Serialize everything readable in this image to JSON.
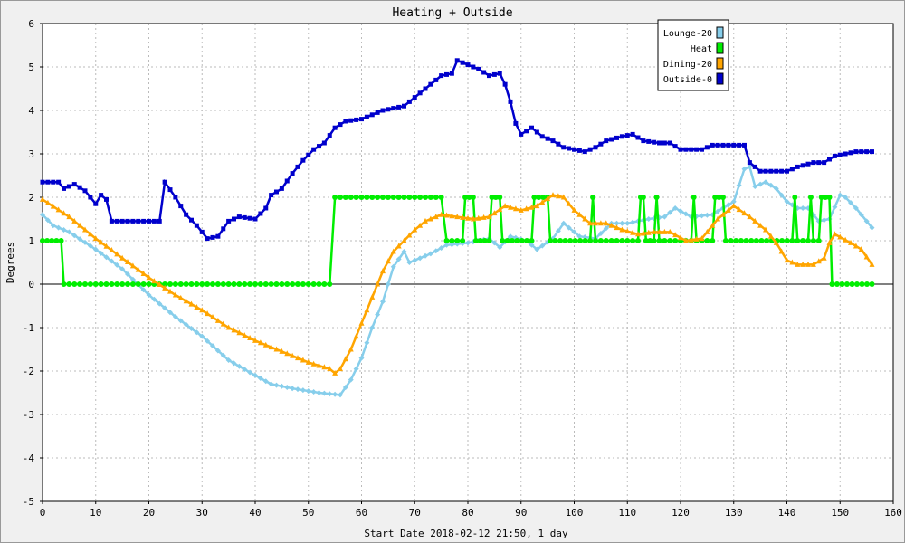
{
  "chart_data": {
    "type": "line",
    "title": "Heating + Outside",
    "xlabel": "Start Date 2018-02-12 21:50, 1 day",
    "ylabel": "Degrees",
    "xlim": [
      0,
      160
    ],
    "ylim": [
      -5,
      6
    ],
    "x_ticks": [
      0,
      10,
      20,
      30,
      40,
      50,
      60,
      70,
      80,
      90,
      100,
      110,
      120,
      130,
      140,
      150,
      160
    ],
    "y_ticks": [
      -5,
      -4,
      -3,
      -2,
      -1,
      0,
      1,
      2,
      3,
      4,
      5,
      6
    ],
    "grid": true,
    "legend_position": "top-right",
    "series": [
      {
        "name": "Lounge-20",
        "color": "#87ceeb",
        "marker": "diamond",
        "points": [
          [
            0,
            1.6
          ],
          [
            2,
            1.35
          ],
          [
            5,
            1.2
          ],
          [
            10,
            0.8
          ],
          [
            15,
            0.35
          ],
          [
            20,
            -0.25
          ],
          [
            25,
            -0.75
          ],
          [
            30,
            -1.2
          ],
          [
            35,
            -1.75
          ],
          [
            40,
            -2.1
          ],
          [
            43,
            -2.3
          ],
          [
            47,
            -2.4
          ],
          [
            52,
            -2.5
          ],
          [
            56,
            -2.55
          ],
          [
            58,
            -2.2
          ],
          [
            60,
            -1.7
          ],
          [
            62,
            -1.0
          ],
          [
            64,
            -0.4
          ],
          [
            66,
            0.4
          ],
          [
            68,
            0.75
          ],
          [
            69,
            0.5
          ],
          [
            71,
            0.6
          ],
          [
            73,
            0.7
          ],
          [
            76,
            0.9
          ],
          [
            80,
            0.95
          ],
          [
            84,
            1.05
          ],
          [
            86,
            0.85
          ],
          [
            88,
            1.1
          ],
          [
            91,
            1.0
          ],
          [
            93,
            0.8
          ],
          [
            96,
            1.05
          ],
          [
            98,
            1.4
          ],
          [
            101,
            1.1
          ],
          [
            104,
            1.05
          ],
          [
            107,
            1.4
          ],
          [
            110,
            1.4
          ],
          [
            114,
            1.5
          ],
          [
            117,
            1.55
          ],
          [
            119,
            1.75
          ],
          [
            122,
            1.55
          ],
          [
            126,
            1.6
          ],
          [
            130,
            1.9
          ],
          [
            132,
            2.65
          ],
          [
            133,
            2.7
          ],
          [
            134,
            2.25
          ],
          [
            136,
            2.35
          ],
          [
            138,
            2.2
          ],
          [
            140,
            1.9
          ],
          [
            142,
            1.75
          ],
          [
            144,
            1.75
          ],
          [
            146,
            1.45
          ],
          [
            148,
            1.5
          ],
          [
            150,
            2.05
          ],
          [
            151,
            2.0
          ],
          [
            153,
            1.75
          ],
          [
            156,
            1.3
          ]
        ]
      },
      {
        "name": "Heat",
        "color": "#00ee00",
        "marker": "circle",
        "points": [
          [
            0,
            1
          ],
          [
            3.5,
            1
          ],
          [
            4,
            0
          ],
          [
            54,
            0
          ],
          [
            55,
            2
          ],
          [
            75,
            2
          ],
          [
            76,
            1
          ],
          [
            79,
            1
          ],
          [
            79.5,
            2
          ],
          [
            81,
            2
          ],
          [
            81.5,
            1
          ],
          [
            84,
            1
          ],
          [
            84.5,
            2
          ],
          [
            86,
            2
          ],
          [
            86.5,
            1
          ],
          [
            92,
            1
          ],
          [
            92.5,
            2
          ],
          [
            95,
            2
          ],
          [
            95.5,
            1
          ],
          [
            103,
            1
          ],
          [
            103.5,
            2
          ],
          [
            104,
            1
          ],
          [
            112,
            1
          ],
          [
            112.5,
            2
          ],
          [
            113,
            2
          ],
          [
            113.5,
            1
          ],
          [
            115,
            1
          ],
          [
            115.5,
            2
          ],
          [
            116,
            1
          ],
          [
            122,
            1
          ],
          [
            122.5,
            2
          ],
          [
            123,
            1
          ],
          [
            126,
            1
          ],
          [
            126.5,
            2
          ],
          [
            128,
            2
          ],
          [
            128.5,
            1
          ],
          [
            141,
            1
          ],
          [
            141.5,
            2
          ],
          [
            142,
            1
          ],
          [
            144,
            1
          ],
          [
            144.5,
            2
          ],
          [
            145,
            1
          ],
          [
            146,
            1
          ],
          [
            146.5,
            2
          ],
          [
            148,
            2
          ],
          [
            148.5,
            0
          ],
          [
            156,
            0
          ]
        ]
      },
      {
        "name": "Dining-20",
        "color": "#ffa500",
        "marker": "triangle",
        "points": [
          [
            0,
            1.95
          ],
          [
            5,
            1.55
          ],
          [
            10,
            1.05
          ],
          [
            15,
            0.6
          ],
          [
            20,
            0.15
          ],
          [
            25,
            -0.25
          ],
          [
            30,
            -0.6
          ],
          [
            35,
            -1.0
          ],
          [
            40,
            -1.3
          ],
          [
            45,
            -1.55
          ],
          [
            50,
            -1.8
          ],
          [
            54,
            -1.95
          ],
          [
            55,
            -2.05
          ],
          [
            56,
            -1.95
          ],
          [
            58,
            -1.5
          ],
          [
            60,
            -0.9
          ],
          [
            62,
            -0.3
          ],
          [
            64,
            0.3
          ],
          [
            66,
            0.75
          ],
          [
            68,
            1.0
          ],
          [
            70,
            1.25
          ],
          [
            72,
            1.45
          ],
          [
            75,
            1.6
          ],
          [
            78,
            1.55
          ],
          [
            81,
            1.5
          ],
          [
            84,
            1.55
          ],
          [
            87,
            1.8
          ],
          [
            90,
            1.7
          ],
          [
            93,
            1.8
          ],
          [
            96,
            2.05
          ],
          [
            98,
            2.0
          ],
          [
            100,
            1.7
          ],
          [
            103,
            1.4
          ],
          [
            106,
            1.4
          ],
          [
            109,
            1.25
          ],
          [
            112,
            1.15
          ],
          [
            115,
            1.2
          ],
          [
            118,
            1.2
          ],
          [
            121,
            1.0
          ],
          [
            124,
            1.05
          ],
          [
            127,
            1.5
          ],
          [
            130,
            1.8
          ],
          [
            133,
            1.55
          ],
          [
            136,
            1.25
          ],
          [
            138,
            0.95
          ],
          [
            140,
            0.55
          ],
          [
            142,
            0.45
          ],
          [
            145,
            0.45
          ],
          [
            147,
            0.6
          ],
          [
            148,
            0.95
          ],
          [
            149,
            1.15
          ],
          [
            152,
            0.95
          ],
          [
            154,
            0.8
          ],
          [
            156,
            0.45
          ]
        ]
      },
      {
        "name": "Outside-0",
        "color": "#0000cc",
        "marker": "square",
        "points": [
          [
            0,
            2.35
          ],
          [
            3,
            2.35
          ],
          [
            4,
            2.2
          ],
          [
            6,
            2.3
          ],
          [
            8,
            2.15
          ],
          [
            10,
            1.85
          ],
          [
            11,
            2.05
          ],
          [
            12,
            1.95
          ],
          [
            13,
            1.45
          ],
          [
            16,
            1.45
          ],
          [
            20,
            1.45
          ],
          [
            22,
            1.45
          ],
          [
            23,
            2.35
          ],
          [
            25,
            2.0
          ],
          [
            27,
            1.6
          ],
          [
            29,
            1.35
          ],
          [
            31,
            1.05
          ],
          [
            33,
            1.1
          ],
          [
            35,
            1.45
          ],
          [
            37,
            1.55
          ],
          [
            40,
            1.5
          ],
          [
            42,
            1.75
          ],
          [
            43,
            2.05
          ],
          [
            45,
            2.2
          ],
          [
            47,
            2.55
          ],
          [
            49,
            2.85
          ],
          [
            51,
            3.1
          ],
          [
            53,
            3.25
          ],
          [
            55,
            3.6
          ],
          [
            57,
            3.75
          ],
          [
            60,
            3.8
          ],
          [
            62,
            3.9
          ],
          [
            64,
            4.0
          ],
          [
            66,
            4.05
          ],
          [
            68,
            4.1
          ],
          [
            70,
            4.3
          ],
          [
            72,
            4.5
          ],
          [
            75,
            4.8
          ],
          [
            77,
            4.85
          ],
          [
            78,
            5.15
          ],
          [
            80,
            5.05
          ],
          [
            82,
            4.95
          ],
          [
            84,
            4.8
          ],
          [
            86,
            4.85
          ],
          [
            87,
            4.6
          ],
          [
            88,
            4.2
          ],
          [
            89,
            3.7
          ],
          [
            90,
            3.45
          ],
          [
            92,
            3.6
          ],
          [
            94,
            3.4
          ],
          [
            96,
            3.3
          ],
          [
            98,
            3.15
          ],
          [
            100,
            3.1
          ],
          [
            102,
            3.05
          ],
          [
            104,
            3.15
          ],
          [
            106,
            3.3
          ],
          [
            109,
            3.4
          ],
          [
            111,
            3.45
          ],
          [
            113,
            3.3
          ],
          [
            116,
            3.25
          ],
          [
            118,
            3.25
          ],
          [
            120,
            3.1
          ],
          [
            124,
            3.1
          ],
          [
            126,
            3.2
          ],
          [
            128,
            3.2
          ],
          [
            132,
            3.2
          ],
          [
            133,
            2.8
          ],
          [
            135,
            2.6
          ],
          [
            138,
            2.6
          ],
          [
            140,
            2.6
          ],
          [
            142,
            2.7
          ],
          [
            145,
            2.8
          ],
          [
            147,
            2.8
          ],
          [
            149,
            2.95
          ],
          [
            151,
            3.0
          ],
          [
            153,
            3.05
          ],
          [
            155,
            3.05
          ],
          [
            156,
            3.05
          ]
        ]
      }
    ]
  }
}
